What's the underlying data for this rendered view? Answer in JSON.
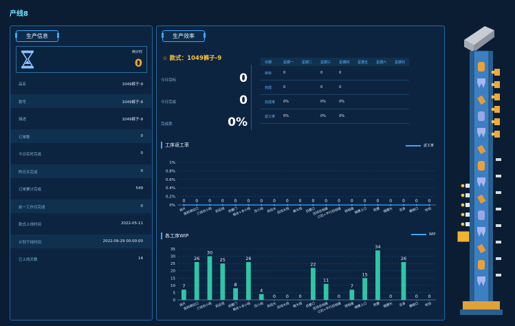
{
  "title": "产线8",
  "left": {
    "title": "生产信息",
    "countdown_label": "倒计时",
    "countdown_value": "0",
    "rows": [
      {
        "k": "品名",
        "v": "1049裤子-9"
      },
      {
        "k": "款号",
        "v": "1049裤子-9"
      },
      {
        "k": "描述",
        "v": "1049裤子-9"
      },
      {
        "k": "订单数",
        "v": "0"
      },
      {
        "k": "今日实时完成",
        "v": "0"
      },
      {
        "k": "昨日天完成",
        "v": "0"
      },
      {
        "k": "订单累计完成",
        "v": "549"
      },
      {
        "k": "前一工作日完成",
        "v": "0"
      },
      {
        "k": "款式上线时间",
        "v": "2022-05-11"
      },
      {
        "k": "计划下线时间",
        "v": "2022-09-29 00:00:00"
      },
      {
        "k": "已上线天数",
        "v": "14"
      }
    ]
  },
  "mid": {
    "title": "生产效率",
    "style": "款式：1049裤子-9",
    "kpis": [
      {
        "k": "今日目标",
        "v": "0"
      },
      {
        "k": "今日完成",
        "v": "0"
      },
      {
        "k": "完成率",
        "v": "0%"
      }
    ],
    "week": {
      "headers": [
        "日期",
        "星期一",
        "星期二",
        "星期三",
        "星期四",
        "星期五",
        "星期六",
        "星期日"
      ],
      "rows": [
        [
          "目标",
          "0",
          "",
          "0",
          "0",
          "",
          "",
          ""
        ],
        [
          "完成",
          "0",
          "",
          "0",
          "0",
          "",
          "",
          ""
        ],
        [
          "完成率",
          "0%",
          "",
          "0%",
          "0%",
          "",
          "",
          ""
        ],
        [
          "返工率",
          "0%",
          "",
          "0%",
          "0%",
          "",
          "",
          ""
        ]
      ]
    },
    "rework_title": "工序返工率",
    "rework_legend": "返工率",
    "wip_title": "各工序WIP",
    "wip_legend": "WIP"
  },
  "chart_data": [
    {
      "type": "line",
      "title": "工序返工率",
      "categories": [
        "挂片",
        "面前袋拉口",
        "三线合小裆",
        "前后裆",
        "前腰门",
        "缝合+合小裆",
        "压小裆",
        "前后头",
        "压线大裆",
        "缝大裆",
        "后腰口",
        "压线合裆缝",
        "订扣+平行后裆缝",
        "锁裆缝",
        "裤腰上口",
        "熨腰",
        "缝腰头",
        "买身",
        "腰眼口",
        "检验"
      ],
      "series": [
        {
          "name": "返工率",
          "values": [
            0,
            0,
            0,
            0,
            0,
            0,
            0,
            0,
            0,
            0,
            0,
            0,
            0,
            0,
            0,
            0,
            0,
            0,
            0,
            0
          ]
        }
      ],
      "yticks": [
        "0%",
        "0.2%",
        "0.4%",
        "0.6%",
        "0.8%",
        "1%"
      ],
      "ylim": [
        0,
        1
      ]
    },
    {
      "type": "bar",
      "title": "各工序WIP",
      "categories": [
        "挂片",
        "面前袋拉口",
        "三线合小裆",
        "前后裆",
        "前腰门",
        "缝合+合小裆",
        "压小裆",
        "前后头",
        "压线大裆",
        "缝大裆",
        "后腰口",
        "压线合裆缝",
        "订扣+平行后裆缝",
        "锁裆缝",
        "裤腰上口",
        "熨腰",
        "缝腰头",
        "买身",
        "腰眼口",
        "检验"
      ],
      "series": [
        {
          "name": "WIP",
          "values": [
            7,
            26,
            30,
            25,
            8,
            26,
            4,
            0,
            0,
            0,
            22,
            11,
            0,
            7,
            15,
            34,
            0,
            26,
            0,
            0
          ]
        }
      ],
      "yticks": [
        "0",
        "5",
        "10",
        "15",
        "20",
        "25",
        "30",
        "35"
      ],
      "ylim": [
        0,
        35
      ]
    }
  ],
  "colors": {
    "accent": "#3ea7ff",
    "orange": "#f5a623",
    "bar": "#2fc6a7",
    "bg": "#0b1d33"
  }
}
